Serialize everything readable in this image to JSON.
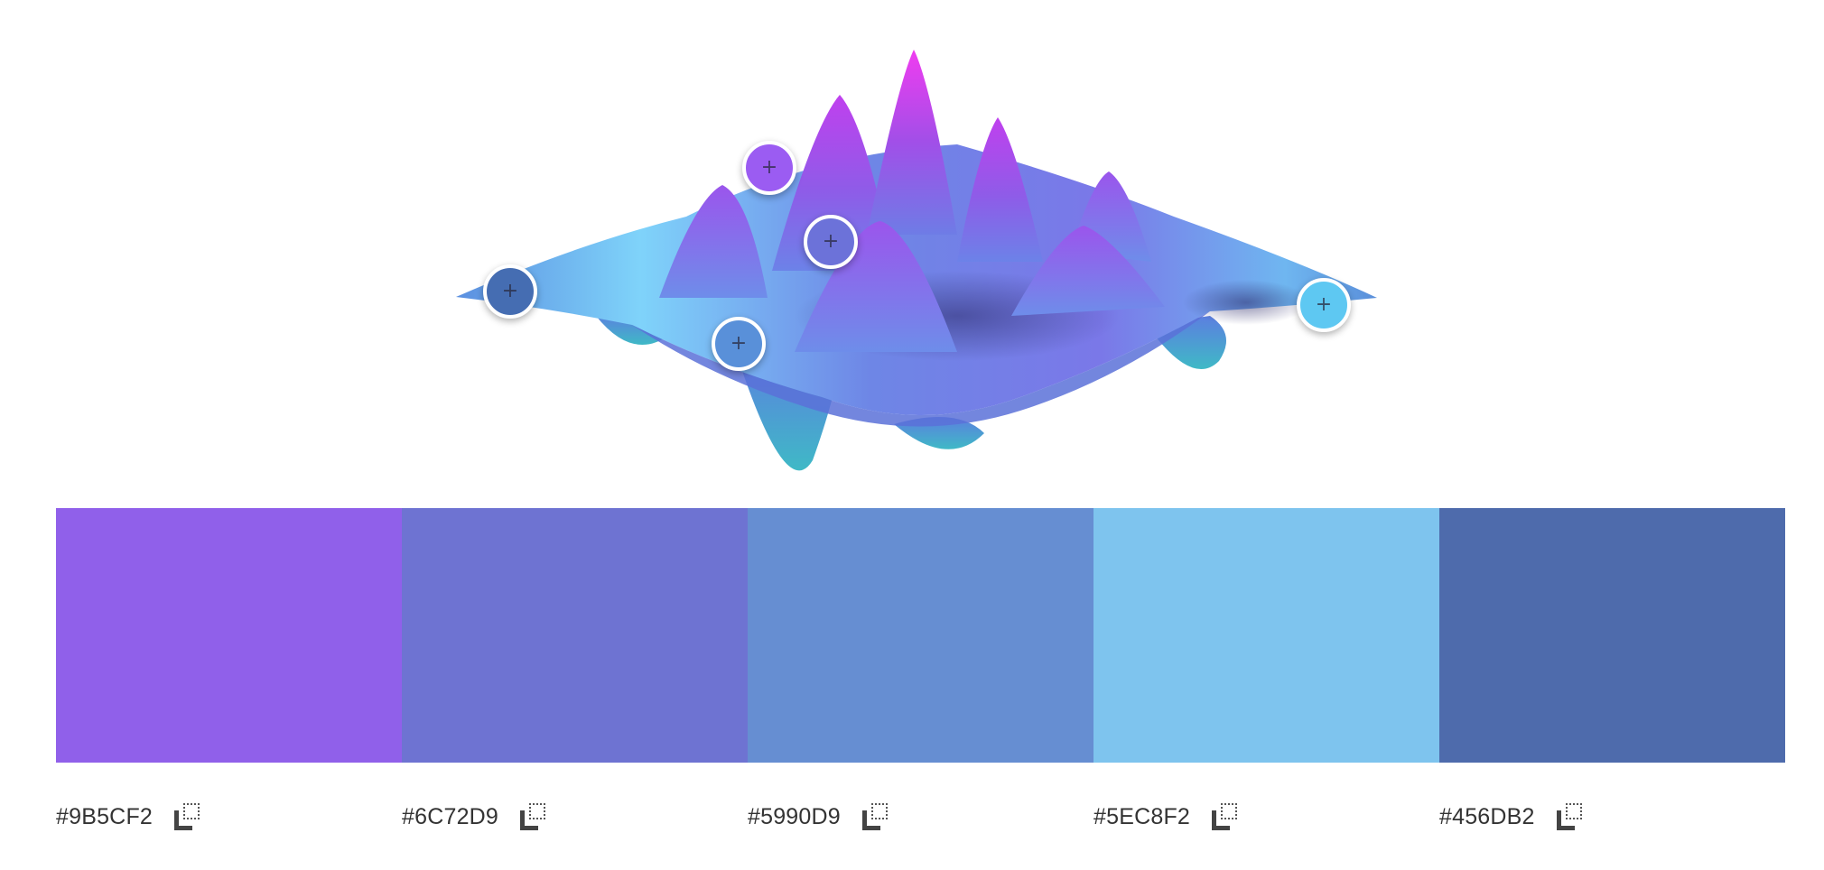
{
  "colors": {
    "mark_1": "#9B5CF2",
    "mark_2": "#6C72D9",
    "mark_3": "#5990D9",
    "mark_4": "#5EC8F2",
    "mark_5": "#456DB2"
  },
  "hero": {
    "icon": "3d-wave-surface-illustration"
  },
  "pickers": [
    {
      "icon": "plus-icon",
      "glyph": "+",
      "color": "#9B5CF2"
    },
    {
      "icon": "plus-icon",
      "glyph": "+",
      "color": "#6C72D9"
    },
    {
      "icon": "plus-icon",
      "glyph": "+",
      "color": "#5990D9"
    },
    {
      "icon": "plus-icon",
      "glyph": "+",
      "color": "#5EC8F2"
    },
    {
      "icon": "plus-icon",
      "glyph": "+",
      "color": "#456DB2"
    }
  ],
  "swatches": [
    {
      "hex": "#9B5CF2",
      "display_color": "#9060EA",
      "copy_icon": "copy-icon"
    },
    {
      "hex": "#6C72D9",
      "display_color": "#6E73D2",
      "copy_icon": "copy-icon"
    },
    {
      "hex": "#5990D9",
      "display_color": "#668ED2",
      "copy_icon": "copy-icon"
    },
    {
      "hex": "#5EC8F2",
      "display_color": "#7EC4EE",
      "copy_icon": "copy-icon"
    },
    {
      "hex": "#456DB2",
      "display_color": "#4E6BAC",
      "copy_icon": "copy-icon"
    }
  ]
}
